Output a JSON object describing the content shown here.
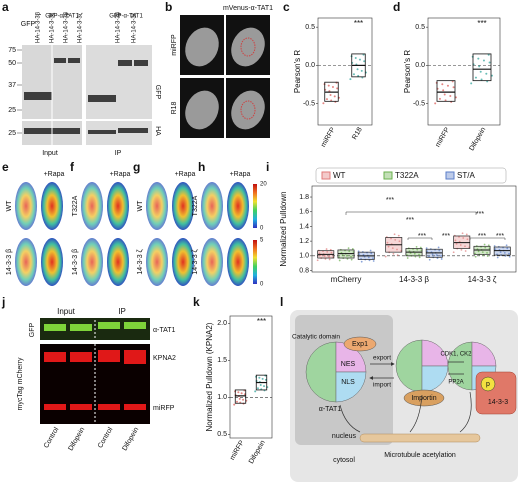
{
  "letters": [
    "a",
    "b",
    "c",
    "d",
    "e",
    "f",
    "g",
    "h",
    "i",
    "j",
    "k",
    "l"
  ],
  "a": {
    "top_labels": [
      "GFP",
      "GFP-α-TAT1",
      "GFP-α-TAT1"
    ],
    "lane_labels": [
      "HA-14-3-3β",
      "HA-14-3-3ζ",
      "HA-14-3-3β",
      "HA-14-3-3ζ",
      "HA-14-3-3β",
      "HA-14-3-3ζ"
    ],
    "markers": [
      75,
      50,
      37,
      25,
      25
    ],
    "band_labels": [
      "GFP",
      "HA"
    ],
    "sections": [
      "Input",
      "IP"
    ]
  },
  "b": {
    "title": "mVenus-α-TAT1",
    "rows": [
      "miRFP",
      "R18"
    ]
  },
  "c": {
    "ylabel": "Pearson's R",
    "categories": [
      "miRFP",
      "R18"
    ],
    "median": [
      -0.35,
      0.0
    ],
    "q1": [
      -0.47,
      -0.15
    ],
    "q3": [
      -0.22,
      0.15
    ],
    "colors": [
      "#d9534f",
      "#2aa198"
    ],
    "ylim": [
      -0.78,
      0.62
    ],
    "yticks": [
      -0.5,
      {
        "value": 0,
        "label": "0.0"
      },
      0.5
    ],
    "significance": "***"
  },
  "d": {
    "ylabel": "Pearson's R",
    "categories": [
      "miRFP",
      "Difopein"
    ],
    "median": [
      -0.35,
      -0.05
    ],
    "q1": [
      -0.47,
      -0.2
    ],
    "q3": [
      -0.2,
      0.15
    ],
    "colors": [
      "#d9534f",
      "#2aa198"
    ],
    "ylim": [
      -0.78,
      0.62
    ],
    "yticks": [
      -0.5,
      {
        "value": 0,
        "label": "0.0"
      },
      0.5
    ],
    "significance": "***"
  },
  "e": {
    "header": "+Rapa",
    "rows": [
      "WT",
      "14-3-3 β"
    ]
  },
  "f": {
    "header": "+Rapa",
    "rows": [
      "T322A",
      "14-3-3 β"
    ]
  },
  "g": {
    "header": "+Rapa",
    "rows": [
      "WT",
      "14-3-3 ζ"
    ]
  },
  "h": {
    "header": "+Rapa",
    "rows": [
      "T322A",
      "14-3-3 ζ"
    ]
  },
  "colorbars": [
    {
      "max": 20,
      "min": 0
    },
    {
      "max": 5,
      "min": 0
    }
  ],
  "i": {
    "ylabel": "Normalized Pulldown",
    "categories": [
      "mCherry",
      "14-3-3 β",
      "14-3-3 ζ"
    ],
    "series": [
      {
        "name": "WT",
        "color": "#e07a7a",
        "median": [
          1.02,
          1.15,
          1.18
        ],
        "q1": [
          0.97,
          1.05,
          1.1
        ],
        "q3": [
          1.07,
          1.25,
          1.27
        ]
      },
      {
        "name": "T322A",
        "color": "#6ab04c",
        "median": [
          1.03,
          1.05,
          1.08
        ],
        "q1": [
          0.97,
          1.0,
          1.02
        ],
        "q3": [
          1.08,
          1.1,
          1.13
        ]
      },
      {
        "name": "ST/A",
        "color": "#5a7ec9",
        "median": [
          1.0,
          1.04,
          1.07
        ],
        "q1": [
          0.95,
          0.98,
          1.01
        ],
        "q3": [
          1.05,
          1.09,
          1.12
        ]
      }
    ],
    "ylim": [
      0.78,
      1.95
    ],
    "yticks": [
      0.8,
      {
        "value": 1,
        "label": "1.0"
      },
      1.2,
      1.4,
      1.6,
      1.8
    ],
    "significance": [
      "***",
      "***",
      "***",
      "***",
      "***",
      "***",
      "***"
    ]
  },
  "j": {
    "sections": [
      "Input",
      "IP"
    ],
    "bands": [
      "α-TAT1",
      "KPNA2",
      "miRFP"
    ],
    "channels": [
      "GFP",
      "mycTag mCherry"
    ],
    "lanes": [
      "Control",
      "Difopein",
      "Control",
      "Difopein"
    ]
  },
  "k": {
    "ylabel": "Normalized Pulldown (KPNA2)",
    "categories": [
      "miRFP",
      "Difopein"
    ],
    "median": [
      1.02,
      1.2
    ],
    "q1": [
      0.92,
      1.1
    ],
    "q3": [
      1.1,
      1.3
    ],
    "colors": [
      "#d9534f",
      "#2aa198"
    ],
    "ylim": [
      0.45,
      2.1
    ],
    "yticks": [
      0.5,
      {
        "value": 1,
        "label": "1.0"
      },
      1.5,
      {
        "value": 2,
        "label": "2.0"
      }
    ],
    "significance": "***"
  },
  "l": {
    "catalytic": "Catalytic domain",
    "exp1": "Exp1",
    "nes": "NES",
    "nls": "NLS",
    "protein": "α-TAT1",
    "nucleus": "nucleus",
    "cytosol": "cytosol",
    "export": "export",
    "import": "import",
    "importin": "Importin",
    "kinases": "CDK1, CK2",
    "phosphatase": "PP2A",
    "phospho": "p",
    "partner": "14-3-3",
    "outcome": "Microtubule acetylation"
  }
}
